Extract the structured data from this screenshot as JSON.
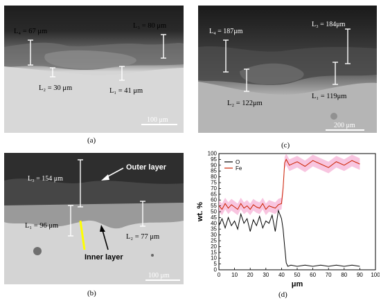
{
  "panels": {
    "a": {
      "caption": "(a)",
      "labels": {
        "L4": "L₄ = 67 μm",
        "L3": "L₃ = 80 μm",
        "L2": "L₂ = 30 μm",
        "L1": "L₁ = 41 μm"
      },
      "scale_bar": "100 μm"
    },
    "b": {
      "caption": "(b)",
      "labels": {
        "L3": "L₃ = 154 μm",
        "L1": "L₁ = 96 μm",
        "L2": "L₂ = 77 μm"
      },
      "outer_layer": "Outer layer",
      "inner_layer": "Inner layer",
      "scale_bar": "100 μm"
    },
    "c": {
      "caption": "(c)",
      "labels": {
        "L4": "L₄ = 187μm",
        "L3": "L₃ = 184μm",
        "L2": "L₂ = 122μm",
        "L1": "L₁ = 119μm"
      },
      "scale_bar": "200 μm"
    },
    "d": {
      "caption": "(d)"
    }
  },
  "chart_data": {
    "type": "line",
    "xlabel": "μm",
    "ylabel": "wt. %",
    "xlim": [
      0,
      100
    ],
    "ylim": [
      0,
      100
    ],
    "xticks": [
      0,
      10,
      20,
      30,
      40,
      50,
      60,
      70,
      80,
      90,
      100
    ],
    "yticks": [
      0,
      5,
      10,
      15,
      20,
      25,
      30,
      35,
      40,
      45,
      50,
      55,
      60,
      65,
      70,
      75,
      80,
      85,
      90,
      95,
      100
    ],
    "legend_position": "top-left",
    "series": [
      {
        "name": "O",
        "color": "#000000",
        "x": [
          0,
          2,
          4,
          6,
          8,
          10,
          12,
          14,
          16,
          18,
          20,
          22,
          24,
          26,
          28,
          30,
          32,
          34,
          36,
          38,
          40,
          41,
          42,
          43,
          44,
          46,
          50,
          55,
          60,
          65,
          70,
          75,
          80,
          85,
          90
        ],
        "y": [
          38,
          44,
          36,
          45,
          38,
          42,
          35,
          48,
          40,
          44,
          33,
          43,
          38,
          46,
          36,
          42,
          40,
          47,
          33,
          51,
          44,
          35,
          20,
          6,
          3,
          4,
          3,
          4,
          3,
          4,
          3,
          4,
          3,
          4,
          3
        ]
      },
      {
        "name": "Fe",
        "color": "#cc2200",
        "x": [
          0,
          2,
          4,
          6,
          8,
          10,
          12,
          14,
          16,
          18,
          20,
          22,
          24,
          26,
          28,
          30,
          32,
          34,
          36,
          38,
          40,
          41,
          42,
          43,
          45,
          50,
          55,
          60,
          65,
          70,
          75,
          80,
          85,
          90
        ],
        "y": [
          55,
          52,
          57,
          53,
          56,
          54,
          52,
          57,
          53,
          55,
          52,
          56,
          54,
          53,
          57,
          52,
          55,
          54,
          53,
          56,
          57,
          70,
          92,
          95,
          90,
          93,
          89,
          94,
          91,
          88,
          93,
          90,
          94,
          91
        ]
      }
    ]
  }
}
